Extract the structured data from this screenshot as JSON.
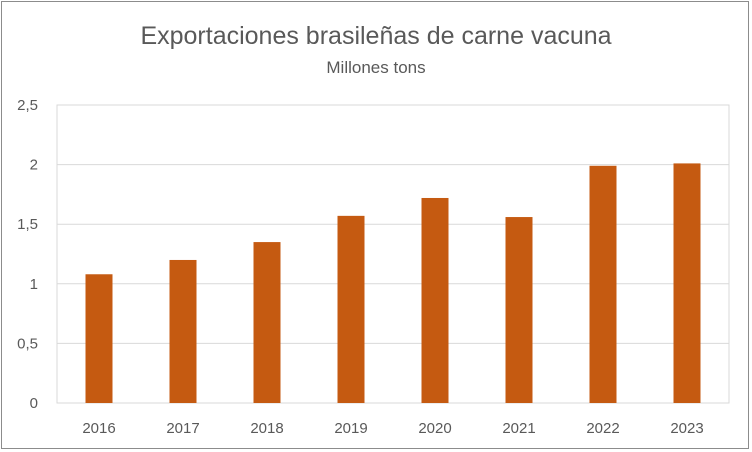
{
  "chart_data": {
    "type": "bar",
    "title": "Exportaciones brasileñas de carne vacuna",
    "subtitle": "Millones tons",
    "categories": [
      "2016",
      "2017",
      "2018",
      "2019",
      "2020",
      "2021",
      "2022",
      "2023"
    ],
    "values": [
      1.08,
      1.2,
      1.35,
      1.57,
      1.72,
      1.56,
      1.99,
      2.01
    ],
    "ylim": [
      0,
      2.5
    ],
    "yticks": [
      "0",
      "0,5",
      "1",
      "1,5",
      "2",
      "2,5"
    ],
    "ytick_values": [
      0,
      0.5,
      1,
      1.5,
      2,
      2.5
    ],
    "grid": true,
    "legend": "none",
    "bar_color": "#c55a11"
  }
}
